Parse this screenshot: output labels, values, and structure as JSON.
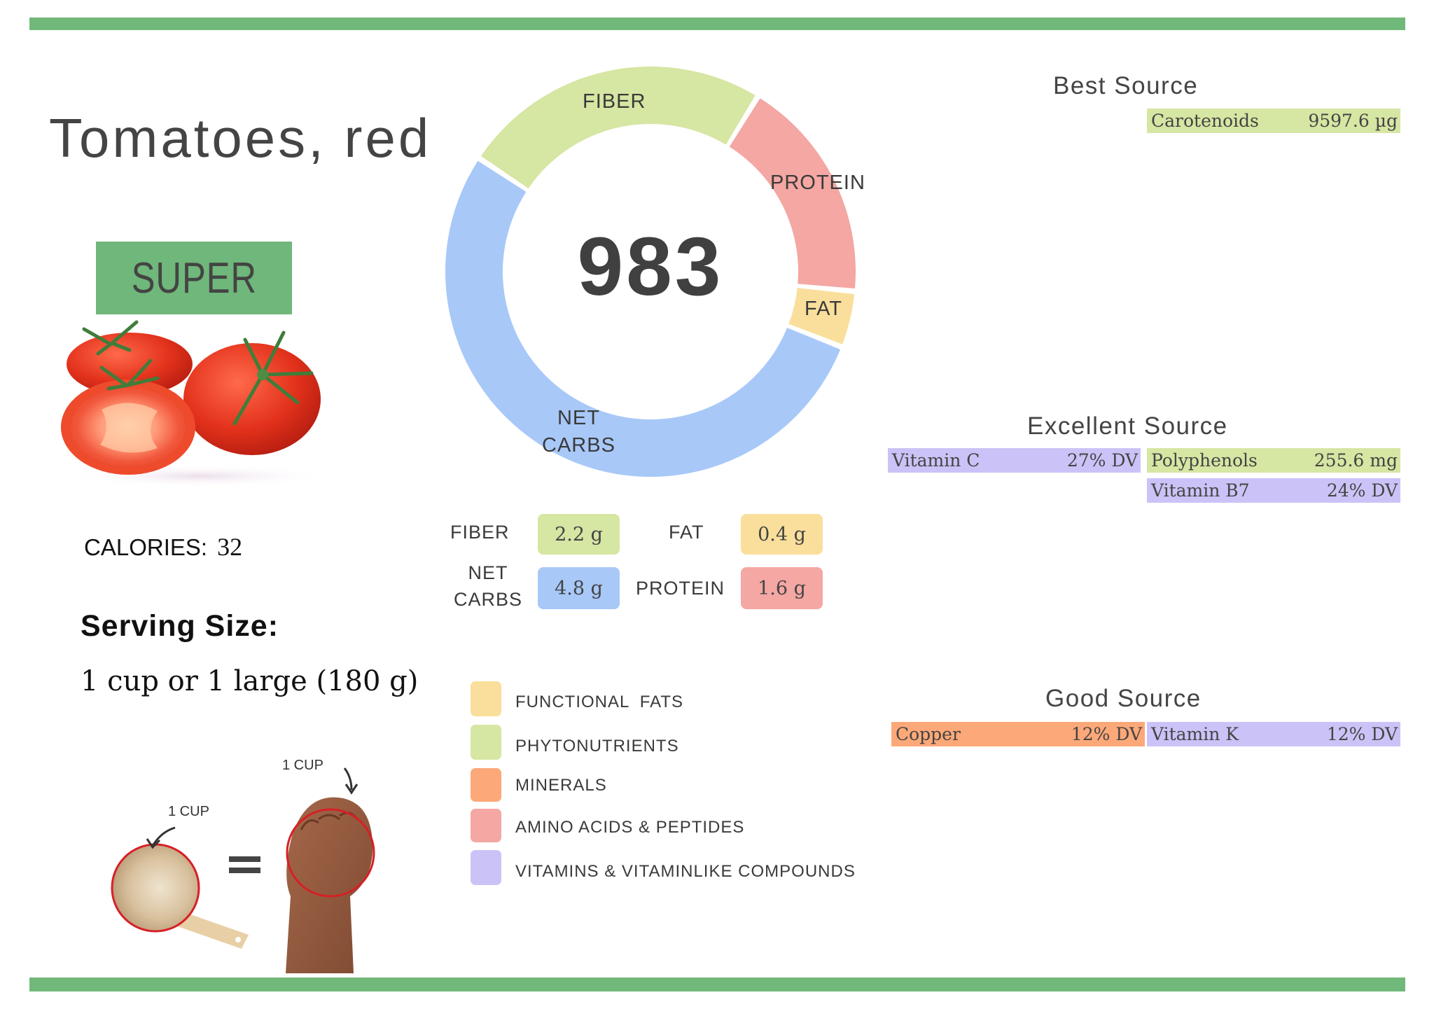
{
  "food": {
    "title": "Tomatoes, red",
    "rating_badge": "SUPER",
    "calories_label": "CALORIES:",
    "calories_value": "32",
    "serving_heading": "Serving Size:",
    "serving_value": "1 cup or 1 large (180 g)"
  },
  "score": {
    "value": "983"
  },
  "chart_data": {
    "type": "pie",
    "title": "",
    "center_label": "983",
    "categories": [
      "FIBER",
      "PROTEIN",
      "FAT",
      "NET CARBS"
    ],
    "values": [
      2.2,
      1.6,
      0.4,
      4.8
    ],
    "units": "g",
    "colors": [
      "#d6e6a3",
      "#f4a7a3",
      "#f9df9b",
      "#a8c8f8"
    ],
    "donut": true,
    "legend_position": "none"
  },
  "donut_labels": {
    "fiber": "FIBER",
    "protein": "PROTEIN",
    "fat": "FAT",
    "net_carbs_1": "NET",
    "net_carbs_2": "CARBS"
  },
  "macros": [
    {
      "label": "FIBER",
      "value": "2.2 g",
      "color": "#d6e6a3"
    },
    {
      "label": "FAT",
      "value": "0.4 g",
      "color": "#f9df9b"
    },
    {
      "label_1": "NET",
      "label_2": "CARBS",
      "value": "4.8 g",
      "color": "#a8c8f8"
    },
    {
      "label": "PROTEIN",
      "value": "1.6 g",
      "color": "#f4a7a3"
    }
  ],
  "legend": [
    {
      "label": "FUNCTIONAL  FATS",
      "color": "#f9df9b"
    },
    {
      "label": "PHYTONUTRIENTS",
      "color": "#d6e6a3"
    },
    {
      "label": "MINERALS",
      "color": "#fda878"
    },
    {
      "label": "AMINO ACIDS & PEPTIDES",
      "color": "#f4a7a3"
    },
    {
      "label": "VITAMINS & VITAMINLIKE COMPOUNDS",
      "color": "#cbc3f7"
    }
  ],
  "best_source": {
    "heading": "Best Source",
    "items": [
      {
        "name": "Carotenoids",
        "value": "9597.6 µg",
        "color": "#d6e6a3"
      }
    ]
  },
  "excellent_source": {
    "heading": "Excellent Source",
    "items": [
      {
        "name": "Vitamin C",
        "value": "27% DV",
        "color": "#cbc3f7"
      },
      {
        "name": "Polyphenols",
        "value": "255.6 mg",
        "color": "#d6e6a3"
      },
      {
        "name": "Vitamin B7",
        "value": "24% DV",
        "color": "#cbc3f7"
      }
    ]
  },
  "good_source": {
    "heading": "Good Source",
    "items": [
      {
        "name": "Copper",
        "value": "12% DV",
        "color": "#fda878"
      },
      {
        "name": "Vitamin K",
        "value": "12% DV",
        "color": "#cbc3f7"
      }
    ]
  },
  "serving_illustration": {
    "cup_label": "1 CUP",
    "fist_label": "1 CUP",
    "equals": "="
  },
  "colors": {
    "brand_green": "#71b87b",
    "text_dark": "#444444"
  }
}
